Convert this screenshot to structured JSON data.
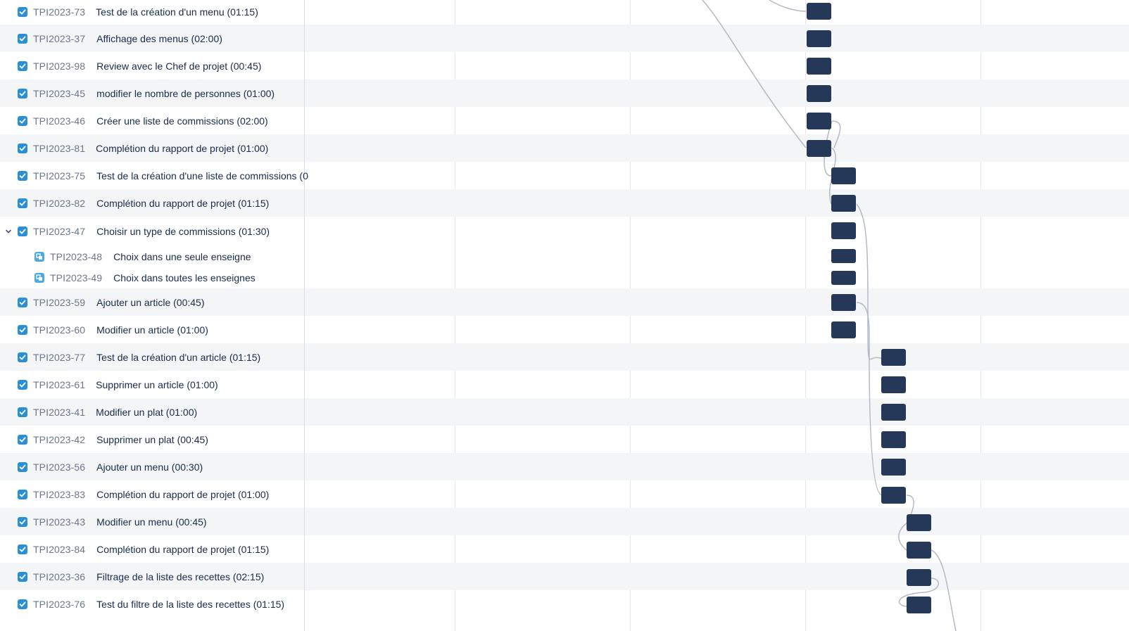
{
  "issues": [
    {
      "key": "TPI2023-73",
      "summary": "Test de la création d'un menu (01:15)",
      "type": "task",
      "checked": true
    },
    {
      "key": "TPI2023-37",
      "summary": "Affichage des menus (02:00)",
      "type": "task",
      "checked": true
    },
    {
      "key": "TPI2023-98",
      "summary": "Review avec le Chef de projet (00:45)",
      "type": "task",
      "checked": true
    },
    {
      "key": "TPI2023-45",
      "summary": "modifier le nombre de personnes (01:00)",
      "type": "task",
      "checked": true
    },
    {
      "key": "TPI2023-46",
      "summary": "Créer une liste de commissions (02:00)",
      "type": "task",
      "checked": true
    },
    {
      "key": "TPI2023-81",
      "summary": "Complétion du rapport de projet (01:00)",
      "type": "task",
      "checked": true
    },
    {
      "key": "TPI2023-75",
      "summary": "Test de la création d'une liste de commissions (0",
      "type": "task",
      "checked": true
    },
    {
      "key": "TPI2023-82",
      "summary": "Complétion du rapport de projet (01:15)",
      "type": "task",
      "checked": true
    },
    {
      "key": "TPI2023-47",
      "summary": "Choisir un type de commissions (01:30)",
      "type": "task",
      "checked": true,
      "expanded": true
    },
    {
      "key": "TPI2023-48",
      "summary": "Choix dans une seule enseigne",
      "type": "subtask"
    },
    {
      "key": "TPI2023-49",
      "summary": "Choix dans toutes les enseignes",
      "type": "subtask"
    },
    {
      "key": "TPI2023-59",
      "summary": "Ajouter un article (00:45)",
      "type": "task",
      "checked": true
    },
    {
      "key": "TPI2023-60",
      "summary": "Modifier un article (01:00)",
      "type": "task",
      "checked": true
    },
    {
      "key": "TPI2023-77",
      "summary": "Test de la création d'un article (01:15)",
      "type": "task",
      "checked": true
    },
    {
      "key": "TPI2023-61",
      "summary": "Supprimer un article (01:00)",
      "type": "task",
      "checked": true
    },
    {
      "key": "TPI2023-41",
      "summary": "Modifier un plat (01:00)",
      "type": "task",
      "checked": true
    },
    {
      "key": "TPI2023-42",
      "summary": "Supprimer un plat (00:45)",
      "type": "task",
      "checked": true
    },
    {
      "key": "TPI2023-56",
      "summary": "Ajouter un menu (00:30)",
      "type": "task",
      "checked": true
    },
    {
      "key": "TPI2023-83",
      "summary": "Complétion du rapport de projet (01:00)",
      "type": "task",
      "checked": true
    },
    {
      "key": "TPI2023-43",
      "summary": "Modifier un menu (00:45)",
      "type": "task",
      "checked": true
    },
    {
      "key": "TPI2023-84",
      "summary": "Complétion du rapport de projet (01:15)",
      "type": "task",
      "checked": true
    },
    {
      "key": "TPI2023-36",
      "summary": "Filtrage de la liste des recettes (02:15)",
      "type": "task",
      "checked": true
    },
    {
      "key": "TPI2023-76",
      "summary": "Test du filtre de la liste des recettes (01:15)",
      "type": "task",
      "checked": true
    }
  ],
  "colors": {
    "bar": "#253858",
    "checkbox": "#2a8fd6",
    "subtask_icon": "#4ba9e6",
    "alt_row": "#f4f5f7",
    "connector": "#b3bac5",
    "key_text": "#6b778c",
    "summary_text": "#172b4d"
  },
  "icons": {
    "expand": "chevron-down-icon",
    "task": "checkbox-checked-icon",
    "subtask": "subtask-icon"
  }
}
